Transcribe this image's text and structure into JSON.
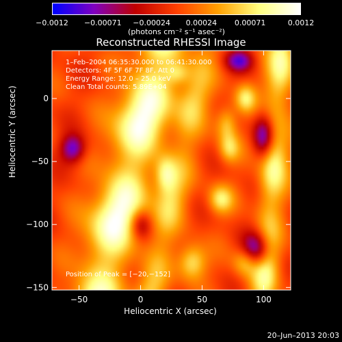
{
  "chart_data": {
    "type": "heatmap",
    "title": "Reconstructed RHESSI Image",
    "xlabel": "Heliocentric X (arcsec)",
    "ylabel": "Heliocentric Y (arcsec)",
    "xlim": [
      -72,
      122
    ],
    "ylim": [
      -152,
      38
    ],
    "x_ticks": [
      -50,
      0,
      50,
      100
    ],
    "x_tick_labels": [
      "−50",
      "0",
      "50",
      "100"
    ],
    "y_ticks": [
      0,
      -50,
      -100,
      -150
    ],
    "y_tick_labels": [
      "0",
      "−50",
      "−100",
      "−150"
    ],
    "colorbar": {
      "range": [
        -0.0012,
        0.0012
      ],
      "ticks": [
        -0.0012,
        -0.00071,
        -0.00024,
        0.00024,
        0.00071,
        0.0012
      ],
      "tick_labels": [
        "−0.0012",
        "−0.00071",
        "−0.00024",
        "0.00024",
        "0.00071",
        "0.0012"
      ],
      "units": "(photons cm⁻² s⁻¹ asec⁻²)",
      "colors": [
        "#0000ff",
        "#8000c0",
        "#c00000",
        "#ff4000",
        "#ffa000",
        "#ffff80",
        "#ffffff"
      ]
    },
    "annotations": {
      "time": "1–Feb–2004 06:35:30.000 to 06:41:30.000",
      "detectors": "Detectors: 4F 5F 6F 7F 8F, Att 0",
      "energy": "Energy Range: 12.0 – 25.0 keV",
      "clean": "Clean     Total counts: 5.89E+04",
      "peak": "Position of Peak = [−20,−152]"
    },
    "ridges": [
      {
        "x0": -35,
        "y0": -152,
        "x1": 15,
        "y1": 38,
        "width": 15,
        "amplitude": 0.0012
      },
      {
        "x0": 8,
        "y0": -152,
        "x1": 52,
        "y1": 38,
        "width": 9,
        "amplitude": 0.0006
      },
      {
        "x0": 100,
        "y0": -152,
        "x1": 115,
        "y1": 38,
        "width": 8,
        "amplitude": 0.0009
      }
    ],
    "blobs": [
      {
        "x": 20,
        "y": -60,
        "sx": 6,
        "sy": 10,
        "a": 0.0007
      },
      {
        "x": 42,
        "y": -130,
        "sx": 8,
        "sy": 10,
        "a": 0.0008
      },
      {
        "x": 65,
        "y": -80,
        "sx": 7,
        "sy": 8,
        "a": 0.0007
      },
      {
        "x": 70,
        "y": -20,
        "sx": 6,
        "sy": 10,
        "a": 0.0006
      },
      {
        "x": 85,
        "y": 0,
        "sx": 6,
        "sy": 8,
        "a": 0.0007
      },
      {
        "x": 72,
        "y": -40,
        "sx": 6,
        "sy": 8,
        "a": 0.0006
      },
      {
        "x": 85,
        "y": -130,
        "sx": 7,
        "sy": 8,
        "a": 0.0006
      },
      {
        "x": 30,
        "y": 20,
        "sx": 7,
        "sy": 6,
        "a": 0.0005
      },
      {
        "x": 95,
        "y": -120,
        "sx": 8,
        "sy": 10,
        "a": -0.0011
      },
      {
        "x": -55,
        "y": -40,
        "sx": 7,
        "sy": 8,
        "a": -0.0009
      },
      {
        "x": 100,
        "y": -30,
        "sx": 6,
        "sy": 12,
        "a": -0.0009
      },
      {
        "x": 80,
        "y": 30,
        "sx": 8,
        "sy": 6,
        "a": -0.0008
      },
      {
        "x": 0,
        "y": -100,
        "sx": 6,
        "sy": 8,
        "a": -0.0006
      }
    ]
  },
  "timestamp": "20–Jun–2013 20:03"
}
